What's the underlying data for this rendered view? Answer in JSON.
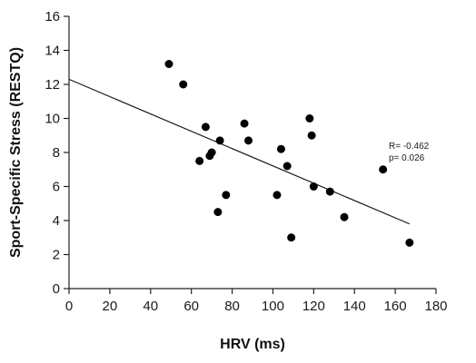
{
  "chart_data": {
    "type": "scatter",
    "title": "",
    "xlabel": "HRV (ms)",
    "ylabel": "Sport-Specific Stress (RESTQ)",
    "xlim": [
      0,
      180
    ],
    "ylim": [
      0,
      16
    ],
    "x_ticks": [
      0,
      20,
      40,
      60,
      80,
      100,
      120,
      140,
      160,
      180
    ],
    "y_ticks": [
      0,
      2,
      4,
      6,
      8,
      10,
      12,
      14,
      16
    ],
    "grid": false,
    "legend": "none",
    "marker_color": "#000000",
    "points": [
      {
        "x": 49,
        "y": 13.2
      },
      {
        "x": 56,
        "y": 12.0
      },
      {
        "x": 64,
        "y": 7.5
      },
      {
        "x": 67,
        "y": 9.5
      },
      {
        "x": 69,
        "y": 7.8
      },
      {
        "x": 70,
        "y": 8.0
      },
      {
        "x": 73,
        "y": 4.5
      },
      {
        "x": 74,
        "y": 8.7
      },
      {
        "x": 77,
        "y": 5.5
      },
      {
        "x": 86,
        "y": 9.7
      },
      {
        "x": 88,
        "y": 8.7
      },
      {
        "x": 102,
        "y": 5.5
      },
      {
        "x": 104,
        "y": 8.2
      },
      {
        "x": 107,
        "y": 7.2
      },
      {
        "x": 109,
        "y": 3.0
      },
      {
        "x": 118,
        "y": 10.0
      },
      {
        "x": 119,
        "y": 9.0
      },
      {
        "x": 120,
        "y": 6.0
      },
      {
        "x": 128,
        "y": 5.7
      },
      {
        "x": 135,
        "y": 4.2
      },
      {
        "x": 154,
        "y": 7.0
      },
      {
        "x": 167,
        "y": 2.7
      }
    ],
    "trendline": {
      "x1": 0,
      "y1": 12.3,
      "x2": 167,
      "y2": 3.8
    },
    "annotations": [
      "R= -0.462",
      "p= 0.026"
    ]
  }
}
